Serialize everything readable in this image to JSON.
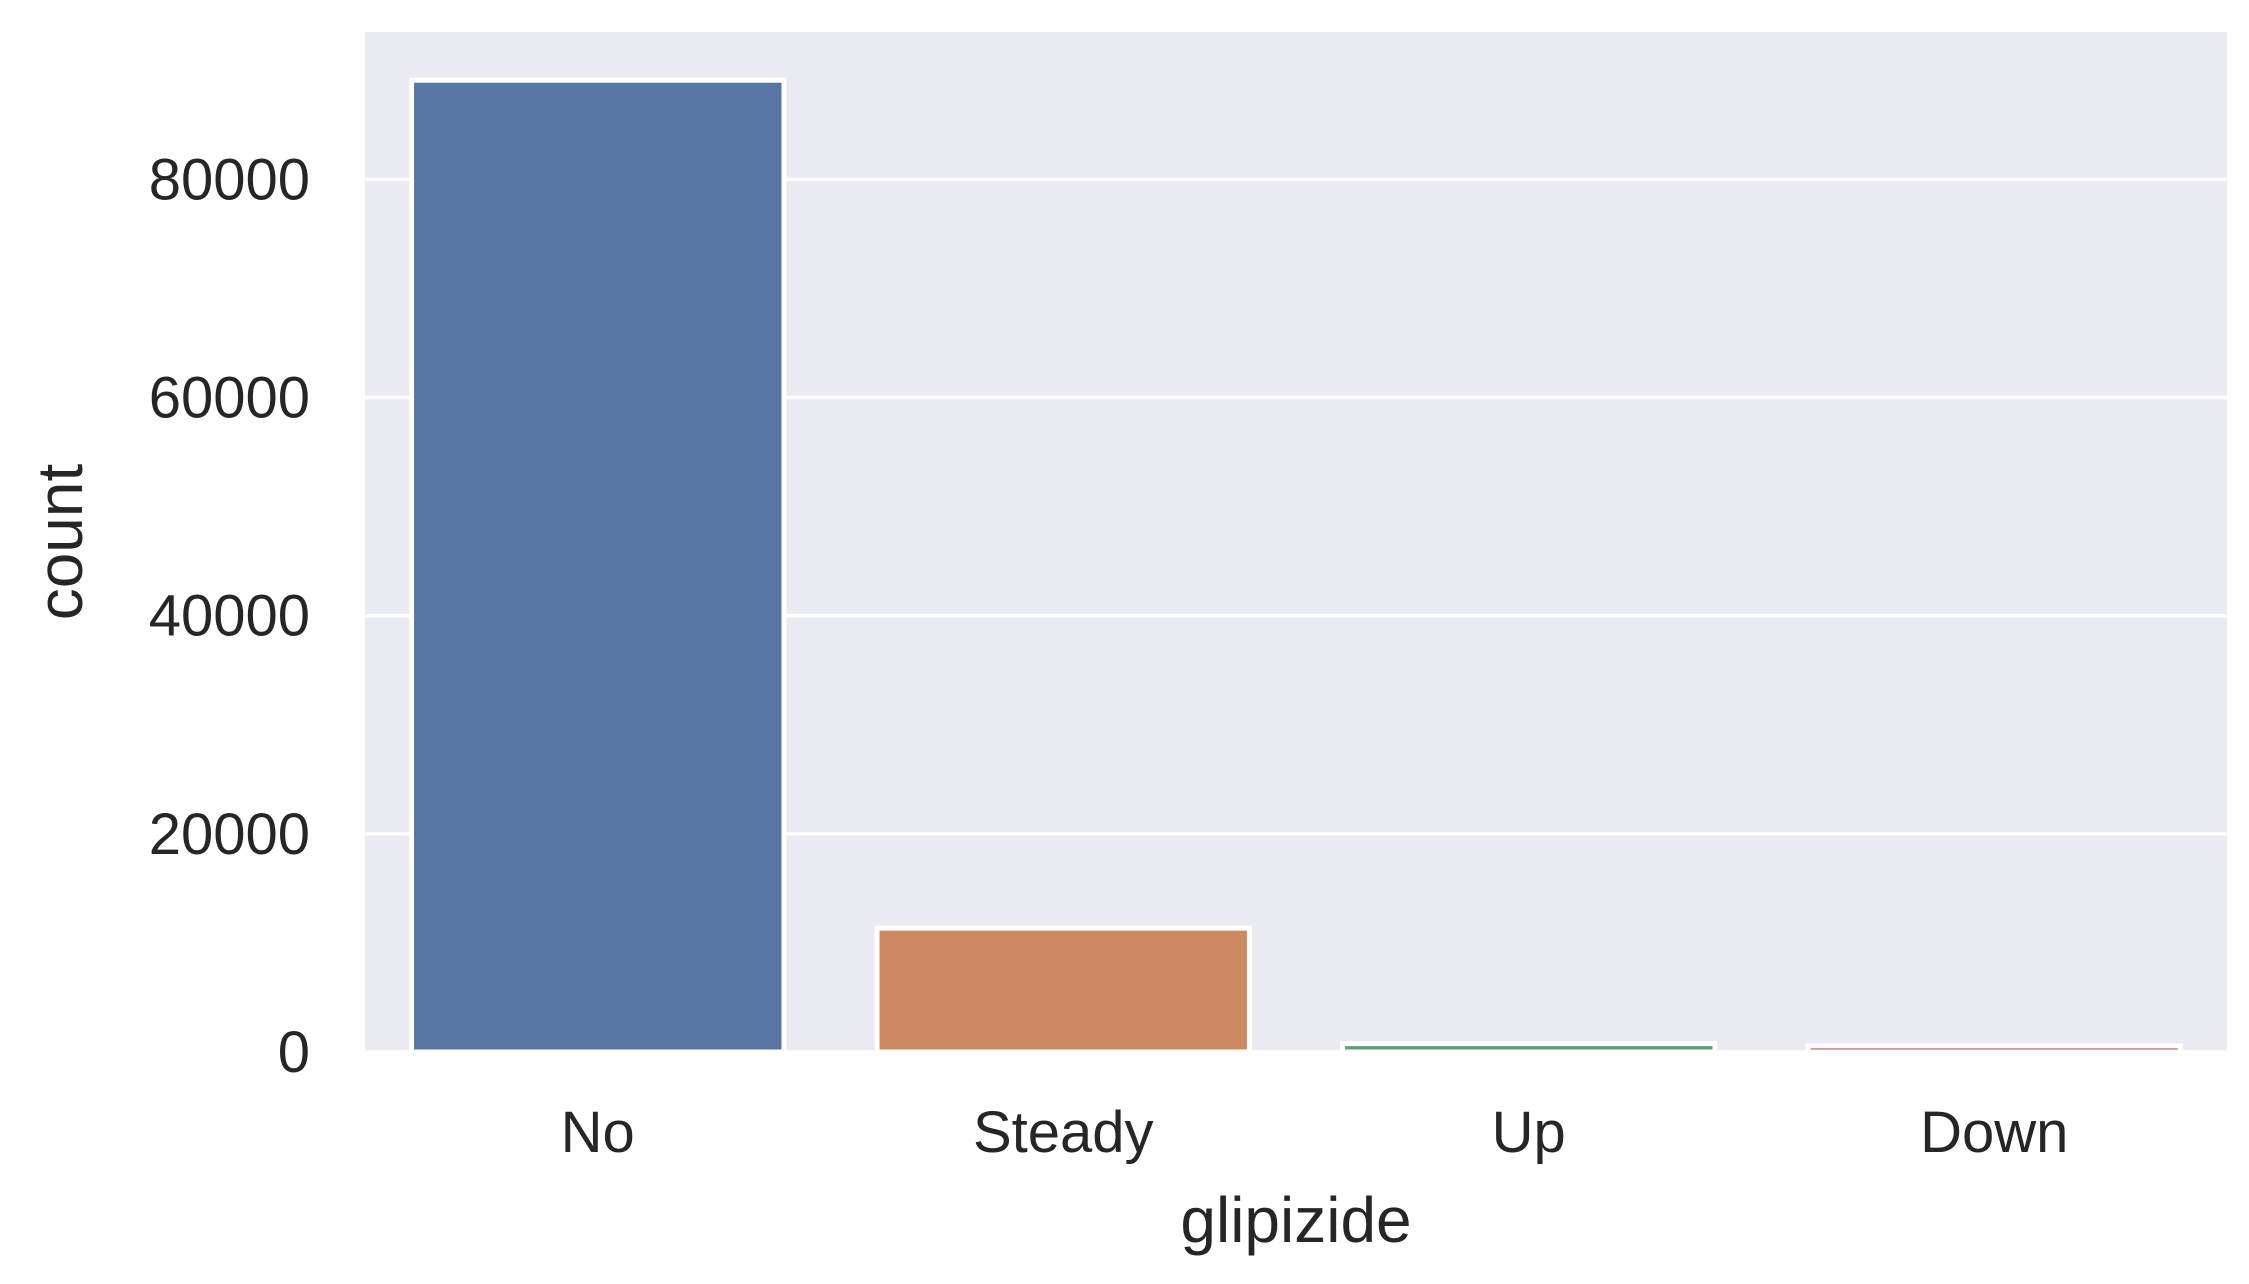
{
  "chart_data": {
    "type": "bar",
    "categories": [
      "No",
      "Steady",
      "Up",
      "Down"
    ],
    "values": [
      89080,
      11356,
      770,
      560
    ],
    "colors": [
      "#5875a4",
      "#cc8963",
      "#5f9e6e",
      "#b55d60"
    ],
    "xlabel": "glipizide",
    "ylabel": "count",
    "ylim": [
      0,
      93500
    ],
    "yticks": [
      0,
      20000,
      40000,
      60000,
      80000
    ],
    "ytick_labels": [
      "0",
      "20000",
      "40000",
      "60000",
      "80000"
    ],
    "grid": true,
    "background": "#eaeaf2",
    "grid_color": "#ffffff",
    "edge_color": "#ffffff"
  }
}
